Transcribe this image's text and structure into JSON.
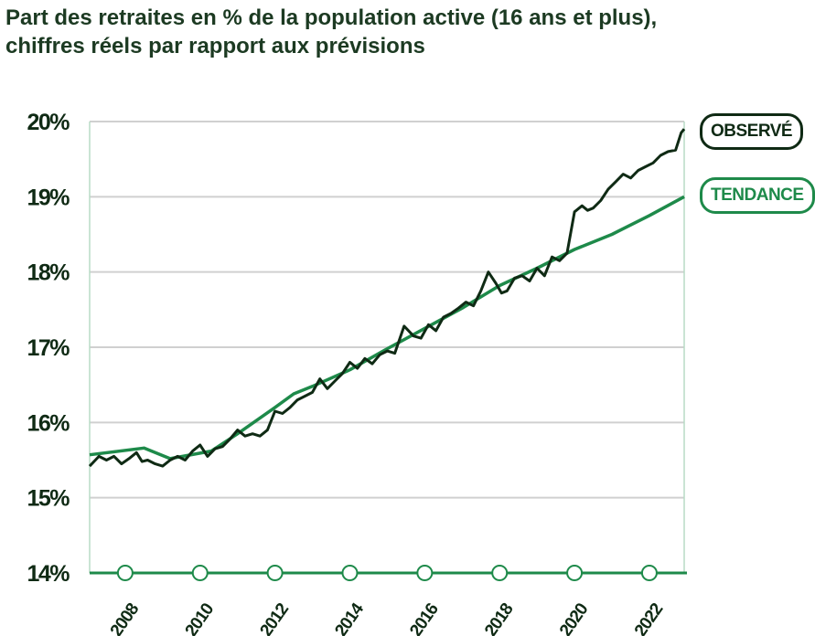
{
  "chart_data": {
    "type": "line",
    "title": [
      "Part des retraites en % de la population active (16 ans et plus),",
      "chiffres réels par rapport aux prévisions"
    ],
    "xlabel": "",
    "ylabel": "",
    "xlim": [
      2007.05,
      2022.93
    ],
    "ylim": [
      14,
      20
    ],
    "y_ticks": [
      14,
      15,
      16,
      17,
      18,
      19,
      20
    ],
    "y_tick_labels": [
      "14%",
      "15%",
      "16%",
      "17%",
      "18%",
      "19%",
      "20%"
    ],
    "x_ticks": [
      2008,
      2010,
      2012,
      2014,
      2016,
      2018,
      2020,
      2022
    ],
    "x_tick_labels": [
      "2008",
      "2010",
      "2012",
      "2014",
      "2016",
      "2018",
      "2020",
      "2022"
    ],
    "grid": true,
    "legend_placement": "right",
    "colors": {
      "observed": "#0f2a14",
      "trend": "#1e8a4a",
      "grid": "#d0d0d0",
      "axis": "#1e8a4a"
    },
    "series": [
      {
        "name": "OBSERVÉ",
        "x": [
          2007.05,
          2007.3,
          2007.5,
          2007.7,
          2007.9,
          2008.1,
          2008.3,
          2008.45,
          2008.6,
          2008.8,
          2009.0,
          2009.2,
          2009.4,
          2009.6,
          2009.8,
          2010.0,
          2010.2,
          2010.4,
          2010.6,
          2010.8,
          2011.0,
          2011.2,
          2011.4,
          2011.6,
          2011.8,
          2012.0,
          2012.2,
          2012.4,
          2012.6,
          2012.8,
          2013.0,
          2013.2,
          2013.4,
          2013.6,
          2013.8,
          2014.0,
          2014.2,
          2014.4,
          2014.6,
          2014.8,
          2015.0,
          2015.2,
          2015.45,
          2015.7,
          2015.9,
          2016.1,
          2016.3,
          2016.5,
          2016.7,
          2016.9,
          2017.1,
          2017.3,
          2017.5,
          2017.7,
          2017.9,
          2018.05,
          2018.2,
          2018.4,
          2018.6,
          2018.8,
          2019.0,
          2019.2,
          2019.4,
          2019.6,
          2019.8,
          2020.0,
          2020.2,
          2020.35,
          2020.5,
          2020.7,
          2020.9,
          2021.1,
          2021.3,
          2021.5,
          2021.7,
          2021.9,
          2022.1,
          2022.3,
          2022.5,
          2022.7,
          2022.85,
          2022.93
        ],
        "values": [
          15.42,
          15.55,
          15.5,
          15.55,
          15.45,
          15.52,
          15.6,
          15.48,
          15.5,
          15.45,
          15.42,
          15.5,
          15.55,
          15.5,
          15.62,
          15.7,
          15.55,
          15.65,
          15.68,
          15.78,
          15.9,
          15.82,
          15.85,
          15.82,
          15.9,
          16.15,
          16.12,
          16.2,
          16.3,
          16.35,
          16.4,
          16.58,
          16.45,
          16.55,
          16.65,
          16.8,
          16.72,
          16.85,
          16.78,
          16.9,
          16.95,
          16.92,
          17.28,
          17.15,
          17.12,
          17.3,
          17.22,
          17.4,
          17.45,
          17.52,
          17.6,
          17.55,
          17.75,
          18.0,
          17.85,
          17.72,
          17.75,
          17.92,
          17.95,
          17.88,
          18.05,
          17.95,
          18.2,
          18.15,
          18.25,
          18.8,
          18.88,
          18.82,
          18.85,
          18.95,
          19.1,
          19.2,
          19.3,
          19.25,
          19.35,
          19.4,
          19.45,
          19.55,
          19.6,
          19.62,
          19.85,
          19.9
        ]
      },
      {
        "name": "TENDANCE",
        "x": [
          2007.05,
          2008.5,
          2009.2,
          2010.3,
          2011.0,
          2012.0,
          2012.5,
          2013.0,
          2014.0,
          2015.0,
          2016.0,
          2017.0,
          2018.0,
          2019.0,
          2020.0,
          2021.0,
          2022.0,
          2022.93
        ],
        "values": [
          15.57,
          15.66,
          15.52,
          15.62,
          15.85,
          16.2,
          16.38,
          16.48,
          16.7,
          16.98,
          17.25,
          17.52,
          17.82,
          18.05,
          18.3,
          18.5,
          18.75,
          19.0
        ]
      }
    ]
  }
}
